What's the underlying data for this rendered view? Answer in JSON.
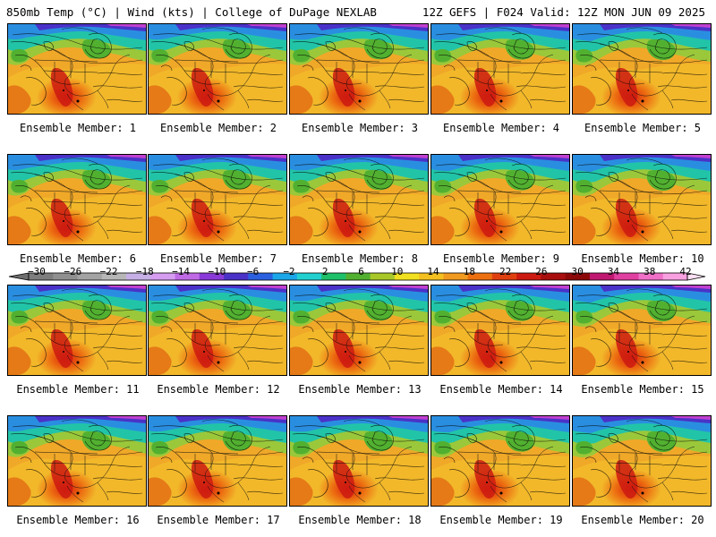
{
  "header": {
    "left": "850mb Temp (°C) | Wind (kts) | College of DuPage NEXLAB",
    "right": "12Z GEFS | F024 Valid: 12Z MON JUN 09 2025"
  },
  "panels": [
    {
      "label": "Ensemble Member: 1"
    },
    {
      "label": "Ensemble Member: 2"
    },
    {
      "label": "Ensemble Member: 3"
    },
    {
      "label": "Ensemble Member: 4"
    },
    {
      "label": "Ensemble Member: 5"
    },
    {
      "label": "Ensemble Member: 6"
    },
    {
      "label": "Ensemble Member: 7"
    },
    {
      "label": "Ensemble Member: 8"
    },
    {
      "label": "Ensemble Member: 9"
    },
    {
      "label": "Ensemble Member: 10"
    },
    {
      "label": "Ensemble Member: 11"
    },
    {
      "label": "Ensemble Member: 12"
    },
    {
      "label": "Ensemble Member: 13"
    },
    {
      "label": "Ensemble Member: 14"
    },
    {
      "label": "Ensemble Member: 15"
    },
    {
      "label": "Ensemble Member: 16"
    },
    {
      "label": "Ensemble Member: 17"
    },
    {
      "label": "Ensemble Member: 18"
    },
    {
      "label": "Ensemble Member: 19"
    },
    {
      "label": "Ensemble Member: 20"
    }
  ],
  "colorbar": {
    "ticks": [
      "−30",
      "−26",
      "−22",
      "−18",
      "−14",
      "−10",
      "−6",
      "−2",
      "2",
      "6",
      "10",
      "14",
      "18",
      "22",
      "26",
      "30",
      "34",
      "38",
      "42"
    ],
    "colors": [
      "#7d7d7d",
      "#8f8f8f",
      "#a3a3a3",
      "#b7b7b7",
      "#c6b0e6",
      "#d59cf0",
      "#c06ae6",
      "#8a3ad8",
      "#4a32c8",
      "#2a60e0",
      "#1aa6e8",
      "#22d0d0",
      "#1ec06a",
      "#52b030",
      "#a8c82a",
      "#f0e020",
      "#f4c020",
      "#f09a20",
      "#ec7010",
      "#e04010",
      "#cc1a10",
      "#a80e0e",
      "#8c0808",
      "#c01870",
      "#e040a0",
      "#f070c8",
      "#f8a0e0"
    ]
  }
}
